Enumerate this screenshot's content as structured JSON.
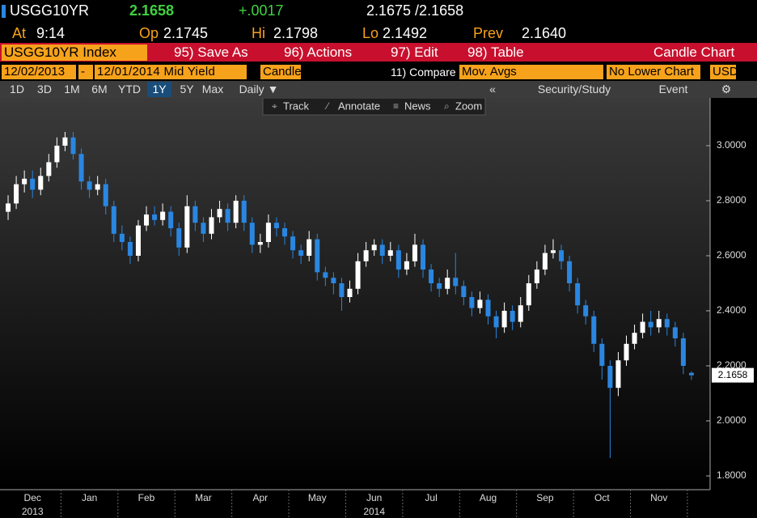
{
  "header": {
    "ticker": "USGG10YR",
    "last": "2.1658",
    "change": "+.0017",
    "bid_ask": "2.1675 /2.1658",
    "at_label": "At",
    "at_time": "9:14",
    "op_label": "Op",
    "op": "2.1745",
    "hi_label": "Hi",
    "hi": "2.1798",
    "lo_label": "Lo",
    "lo": "2.1492",
    "prev_label": "Prev",
    "prev": "2.1640"
  },
  "menu": {
    "security": "USGG10YR Index",
    "items": [
      "95) Save As",
      "96) Actions",
      "97) Edit",
      "98) Table"
    ],
    "chart_kind": "Candle Chart"
  },
  "settings": {
    "start": "12/02/2013",
    "dash": "-",
    "end": "12/01/2014",
    "field": "Mid Yield",
    "style": "Candle",
    "compare": "11) Compare",
    "mov": "Mov. Avgs",
    "lower": "No Lower Chart",
    "currency": "USD"
  },
  "periods": {
    "items": [
      "1D",
      "3D",
      "1M",
      "6M",
      "YTD",
      "1Y",
      "5Y",
      "Max"
    ],
    "frequency": "Daily ▼",
    "study": "Security/Study",
    "event": "Event"
  },
  "tools": [
    "Track",
    "Annotate",
    "News",
    "Zoom"
  ],
  "chart_data": {
    "type": "candlestick",
    "categories": [
      null,
      null,
      null,
      "Dec",
      null,
      null,
      null,
      null,
      null,
      null,
      "Jan",
      null,
      null,
      null,
      null,
      null,
      null,
      "Feb",
      null,
      null,
      null,
      null,
      null,
      null,
      "Mar",
      null,
      null,
      null,
      null,
      null,
      null,
      "Apr",
      null,
      null,
      null,
      null,
      null,
      null,
      "May",
      null,
      null,
      null,
      null,
      null,
      null,
      "Jun",
      null,
      null,
      null,
      null,
      null,
      null,
      "Jul",
      null,
      null,
      null,
      null,
      null,
      null,
      "Aug",
      null,
      null,
      null,
      null,
      null,
      null,
      "Sep",
      null,
      null,
      null,
      null,
      null,
      null,
      "Oct",
      null,
      null,
      null,
      null,
      null,
      null,
      "Nov",
      null,
      null,
      null,
      null
    ],
    "year_labels": [
      "2013",
      "2014"
    ],
    "open": [
      2.76,
      2.79,
      2.86,
      2.88,
      2.84,
      2.89,
      2.94,
      3.0,
      3.03,
      2.97,
      2.87,
      2.84,
      2.86,
      2.78,
      2.68,
      2.65,
      2.6,
      2.71,
      2.75,
      2.73,
      2.76,
      2.7,
      2.63,
      2.78,
      2.72,
      2.68,
      2.74,
      2.77,
      2.72,
      2.8,
      2.72,
      2.64,
      2.65,
      2.72,
      2.7,
      2.67,
      2.62,
      2.6,
      2.66,
      2.54,
      2.52,
      2.5,
      2.45,
      2.48,
      2.58,
      2.62,
      2.64,
      2.6,
      2.62,
      2.55,
      2.58,
      2.64,
      2.55,
      2.5,
      2.48,
      2.52,
      2.49,
      2.45,
      2.41,
      2.44,
      2.38,
      2.34,
      2.4,
      2.36,
      2.42,
      2.5,
      2.55,
      2.61,
      2.62,
      2.58,
      2.5,
      2.42,
      2.38,
      2.28,
      2.2,
      2.12,
      2.22,
      2.28,
      2.32,
      2.36,
      2.34,
      2.37,
      2.34,
      2.3,
      2.1745
    ],
    "high": [
      2.82,
      2.89,
      2.91,
      2.91,
      2.92,
      2.97,
      3.03,
      3.05,
      3.05,
      2.99,
      2.89,
      2.89,
      2.88,
      2.8,
      2.71,
      2.67,
      2.73,
      2.78,
      2.78,
      2.79,
      2.78,
      2.72,
      2.82,
      2.8,
      2.74,
      2.77,
      2.8,
      2.79,
      2.82,
      2.82,
      2.74,
      2.68,
      2.75,
      2.74,
      2.72,
      2.69,
      2.64,
      2.69,
      2.68,
      2.56,
      2.54,
      2.52,
      2.51,
      2.61,
      2.65,
      2.66,
      2.66,
      2.65,
      2.64,
      2.61,
      2.68,
      2.66,
      2.57,
      2.52,
      2.55,
      2.61,
      2.51,
      2.47,
      2.47,
      2.46,
      2.4,
      2.43,
      2.42,
      2.45,
      2.53,
      2.58,
      2.64,
      2.66,
      2.64,
      2.6,
      2.52,
      2.44,
      2.4,
      2.3,
      2.22,
      2.25,
      2.31,
      2.35,
      2.39,
      2.4,
      2.4,
      2.39,
      2.36,
      2.32,
      2.1798
    ],
    "low": [
      2.73,
      2.77,
      2.83,
      2.81,
      2.82,
      2.87,
      2.92,
      2.98,
      2.95,
      2.84,
      2.81,
      2.82,
      2.75,
      2.65,
      2.62,
      2.57,
      2.58,
      2.69,
      2.71,
      2.71,
      2.67,
      2.6,
      2.61,
      2.69,
      2.65,
      2.66,
      2.72,
      2.69,
      2.7,
      2.69,
      2.61,
      2.61,
      2.63,
      2.67,
      2.64,
      2.59,
      2.57,
      2.58,
      2.51,
      2.49,
      2.46,
      2.4,
      2.43,
      2.46,
      2.56,
      2.6,
      2.57,
      2.58,
      2.52,
      2.53,
      2.56,
      2.52,
      2.47,
      2.45,
      2.46,
      2.46,
      2.42,
      2.38,
      2.39,
      2.35,
      2.3,
      2.32,
      2.33,
      2.34,
      2.4,
      2.48,
      2.53,
      2.59,
      2.55,
      2.47,
      2.39,
      2.35,
      2.25,
      2.15,
      1.865,
      2.09,
      2.2,
      2.26,
      2.3,
      2.31,
      2.32,
      2.31,
      2.27,
      2.17,
      2.1492
    ],
    "close": [
      2.79,
      2.86,
      2.88,
      2.84,
      2.89,
      2.94,
      3.0,
      3.03,
      2.97,
      2.87,
      2.84,
      2.86,
      2.78,
      2.68,
      2.65,
      2.6,
      2.71,
      2.75,
      2.73,
      2.76,
      2.7,
      2.63,
      2.78,
      2.72,
      2.68,
      2.74,
      2.77,
      2.72,
      2.8,
      2.72,
      2.64,
      2.65,
      2.72,
      2.7,
      2.67,
      2.62,
      2.6,
      2.66,
      2.54,
      2.52,
      2.5,
      2.45,
      2.48,
      2.58,
      2.62,
      2.64,
      2.6,
      2.62,
      2.55,
      2.58,
      2.64,
      2.55,
      2.5,
      2.48,
      2.52,
      2.49,
      2.45,
      2.41,
      2.44,
      2.38,
      2.34,
      2.4,
      2.36,
      2.42,
      2.5,
      2.55,
      2.61,
      2.62,
      2.58,
      2.5,
      2.42,
      2.38,
      2.28,
      2.2,
      2.12,
      2.22,
      2.28,
      2.32,
      2.36,
      2.34,
      2.37,
      2.34,
      2.3,
      2.2,
      2.1658
    ],
    "up_color": "#ffffff",
    "down_color": "#2a86e0",
    "ylim": [
      1.75,
      3.1
    ],
    "yticks": [
      {
        "value": 1.8,
        "label": "1.8000"
      },
      {
        "value": 2,
        "label": "2.0000"
      },
      {
        "value": 2.2,
        "label": "2.2000"
      },
      {
        "value": 2.4,
        "label": "2.4000"
      },
      {
        "value": 2.6,
        "label": "2.6000"
      },
      {
        "value": 2.8,
        "label": "2.8000"
      },
      {
        "value": 3,
        "label": "3.0000"
      }
    ]
  }
}
